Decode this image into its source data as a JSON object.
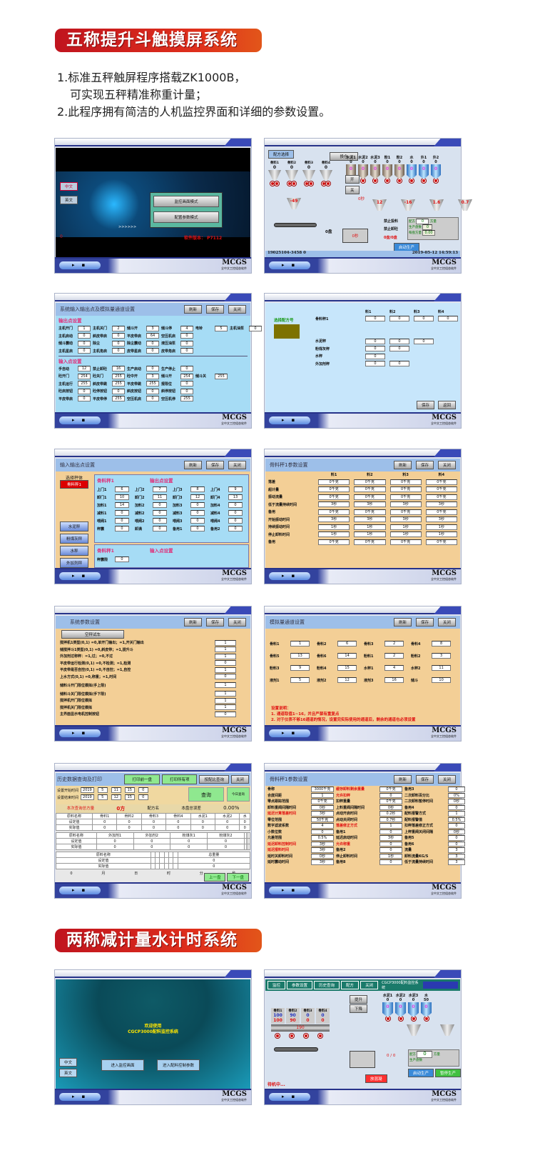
{
  "section1": {
    "title": "五称提升斗触摸屏系统"
  },
  "intro": [
    "1.标准五秤触屏程序搭载ZK1000B，",
    "可实现五秤精准称重计量；",
    "2.此程序拥有简洁的人机监控界面和详细的参数设置。"
  ],
  "section2": {
    "title": "两称减计量水计时系统"
  },
  "footer": {
    "logo": "MCGS",
    "sub": "全中文工控组态软件"
  },
  "colors": {
    "accent_red": "#d4201c",
    "panel_blue": "#9dbfe9",
    "cyan_bg": "#a6dcf5",
    "tan_bg": "#f3cf96"
  },
  "p1": {
    "lang": [
      "中文",
      "英文"
    ],
    "modes": [
      "监控画面模式",
      "配置参数模式"
    ],
    "arrows": ">>>>>>",
    "zero": "0",
    "version": "软件版本：  P7112"
  },
  "p2": {
    "recipe_btn": "配方选择",
    "switch_btn": "换仓",
    "open": "开",
    "close": "关",
    "aggregates": [
      {
        "n": "骨料1",
        "v": "0"
      },
      {
        "n": "骨料2",
        "v": "0"
      },
      {
        "n": "骨料3",
        "v": "0"
      },
      {
        "n": "骨料4",
        "v": "0"
      }
    ],
    "silos": [
      {
        "n": "水泥1",
        "v": "0"
      },
      {
        "n": "水泥2",
        "v": "0"
      },
      {
        "n": "水泥3",
        "v": "0"
      },
      {
        "n": "粉1",
        "v": "0"
      },
      {
        "n": "粉2",
        "v": "0"
      },
      {
        "n": "水",
        "v": "0"
      },
      {
        "n": "外1",
        "v": "0"
      },
      {
        "n": "外2",
        "v": "0"
      }
    ],
    "weigh": [
      "-49",
      "12",
      "-16",
      "1.6",
      "0.7"
    ],
    "timer1": "0秒",
    "batch": "0盘",
    "timer2": "0秒",
    "mixer": "0秒",
    "no_feed": "禁止投料",
    "no_unload": "禁止卸砼",
    "count": "0盘/0盘",
    "recipe_label": "配方",
    "recipe_unit": "方量",
    "recipe_val": "0",
    "produced": "生产盘数",
    "produced_val": "0",
    "remain": "每盘方量",
    "remain_val": "0.00",
    "start": "启动生产",
    "status": "19025104-3458  0",
    "datetime": "2019-05-12  14:59:13"
  },
  "p3": {
    "title": "系统输入输出点及模拟量通道设置",
    "buttons": [
      "刷新",
      "保存",
      "关闭"
    ],
    "out_title": "输出点设置",
    "out": [
      [
        [
          "主机开门",
          "1"
        ],
        [
          "主机关门",
          "2"
        ],
        [
          "储斗开",
          "3"
        ],
        [
          "储斗停",
          "4"
        ],
        [
          "电铃",
          "5"
        ],
        [
          "主机油泵",
          "0"
        ]
      ],
      [
        [
          "主机启动",
          "0"
        ],
        [
          "斜皮带启",
          "0"
        ],
        [
          "平皮带启",
          "64"
        ],
        [
          "空压机启",
          "0"
        ]
      ],
      [
        [
          "储斗震动",
          "0"
        ],
        [
          "除尘",
          "0"
        ],
        [
          "除尘震动",
          "0"
        ],
        [
          "液压油泵",
          "0"
        ]
      ],
      [
        [
          "主机星启",
          "0"
        ],
        [
          "主机角启",
          "0"
        ],
        [
          "皮带星启",
          "0"
        ],
        [
          "皮带角启",
          "0"
        ]
      ]
    ],
    "in_title": "输入点设置",
    "in": [
      [
        [
          "手自动",
          "12"
        ],
        [
          "禁止卸砼",
          "16"
        ],
        [
          "生产启动",
          "0"
        ],
        [
          "生产停止",
          "0"
        ]
      ],
      [
        [
          "砼开门",
          "254"
        ],
        [
          "砼关门",
          "255"
        ],
        [
          "砼中开",
          "3"
        ],
        [
          "储斗开",
          "254"
        ],
        [
          "储斗关",
          "255"
        ]
      ],
      [
        [
          "主机运行",
          "255"
        ],
        [
          "斜皮带跳",
          "255"
        ],
        [
          "平皮带跳",
          "255"
        ],
        [
          "报限位",
          "0"
        ]
      ],
      [
        [
          "砼启按钮",
          "0"
        ],
        [
          "砼停按钮",
          "0"
        ],
        [
          "斜皮按钮",
          "0"
        ],
        [
          "斜停按钮",
          "0"
        ]
      ],
      [
        [
          "平皮带启",
          "0"
        ],
        [
          "平皮带停",
          "255"
        ],
        [
          "空压机启",
          "0"
        ],
        [
          "空压机停",
          "255"
        ]
      ]
    ]
  },
  "p4": {
    "select": "选择配方号",
    "cols": [
      "料1",
      "料2",
      "料3",
      "料4"
    ],
    "rows": [
      [
        "骨料秤1",
        "0",
        "0",
        "0",
        "0"
      ],
      [
        ""
      ],
      [
        ""
      ],
      [
        "水泥秤",
        "0",
        "0",
        "0"
      ],
      [
        "粉煤灰秤",
        "0",
        "0"
      ],
      [
        "水秤",
        "0"
      ],
      [
        "外加剂秤",
        "0",
        "0"
      ]
    ],
    "buttons": [
      "保存",
      "返回"
    ]
  },
  "p5": {
    "title": "输入输出点设置",
    "buttons": [
      "刷新",
      "保存",
      "关闭"
    ],
    "select": "选择秤体",
    "active": "骨料秤1",
    "scales": [
      "水泥秤",
      "粉煤灰秤",
      "水秤",
      "外加剂秤"
    ],
    "scale_name": "骨料秤1",
    "out_title": "输出点设置",
    "out": [
      [
        [
          "上门1",
          "6"
        ],
        [
          "上门2",
          "7"
        ],
        [
          "上门3",
          "8"
        ],
        [
          "上门4",
          "9"
        ]
      ],
      [
        [
          "卸门1",
          "10"
        ],
        [
          "卸门2",
          "11"
        ],
        [
          "卸门3",
          "12"
        ],
        [
          "卸门4",
          "13"
        ]
      ],
      [
        [
          "加料1",
          "14"
        ],
        [
          "加料2",
          "0"
        ],
        [
          "加料3",
          "0"
        ],
        [
          "加料4",
          "0"
        ]
      ],
      [
        [
          "减料1",
          "0"
        ],
        [
          "减料2",
          "0"
        ],
        [
          "减料3",
          "0"
        ],
        [
          "减料4",
          "0"
        ]
      ],
      [
        [
          "喂阀1",
          "0"
        ],
        [
          "喂阀2",
          "0"
        ],
        [
          "喂阀3",
          "0"
        ],
        [
          "喂阀4",
          "0"
        ]
      ],
      [
        [
          "秤震",
          "0"
        ],
        [
          "卸满",
          "0"
        ],
        [
          "备用1",
          "0"
        ],
        [
          "备用2",
          "0"
        ]
      ]
    ],
    "in_title": "输入点设置",
    "in": [
      [
        [
          "秤震限",
          "0"
        ]
      ]
    ]
  },
  "p6": {
    "title": "骨料秤1参数设置",
    "buttons": [
      "刷新",
      "保存",
      "关闭"
    ],
    "cols": [
      "料1",
      "料2",
      "料3",
      "料4"
    ],
    "rows": [
      [
        "落差",
        "0千克",
        "0千克",
        "0千克",
        "0千克"
      ],
      [
        "超计量",
        "0千克",
        "0千克",
        "0千克",
        "0千克"
      ],
      [
        "振动流量",
        "0千克",
        "0千克",
        "0千克",
        "0千克"
      ],
      [
        "低于流量持续时间",
        "3秒",
        "3秒",
        "3秒",
        "3秒"
      ],
      [
        "备用",
        "0千克",
        "0千克",
        "0千克",
        "0千克"
      ],
      [
        "开始振动时间",
        "3秒",
        "3秒",
        "3秒",
        "3秒"
      ],
      [
        "持续振动时间",
        "1秒",
        "1秒",
        "1秒",
        "1秒"
      ],
      [
        "停止卸料时间",
        "1秒",
        "1秒",
        "1秒",
        "1秒"
      ],
      [
        "备用",
        "0千克",
        "0千克",
        "0千克",
        "0千克"
      ]
    ]
  },
  "p7": {
    "title": "系统参数设置",
    "buttons": [
      "刷新",
      "保存",
      "关闭"
    ],
    "test": "空秤试车",
    "rows": [
      [
        "搅拌机1类型(0,1)  =0,单开门输出；=1,开关门输出",
        "1"
      ],
      [
        "储搅拌斗1类型(0,1)  =0,斜皮带；=1,提升斗",
        "1"
      ],
      [
        "外加剂过称秤：=1,过；=0,不过",
        "1"
      ],
      [
        "平皮带运行检测(0,1)  =0,不检测；=1,检测",
        "0"
      ],
      [
        "平皮带是否自控(0,1)  =0,不自控；=1,自控",
        "1"
      ],
      [
        "上水方式(0,1)  =0,称重；=1,时间",
        "0"
      ],
      [
        "储料斗开门限位模拟(手上限)",
        "1"
      ],
      [
        "储料斗关门限位模拟(手下限)",
        "1"
      ],
      [
        "搅拌机开门限位模拟",
        "1"
      ],
      [
        "搅拌机关门限位模拟",
        "1"
      ],
      [
        "主界面显示电机控制按钮",
        "0"
      ]
    ]
  },
  "p8": {
    "title": "模拟量通道设置",
    "buttons": [
      "刷新",
      "保存",
      "关闭"
    ],
    "rows": [
      [
        [
          "骨料1",
          "1"
        ],
        [
          "骨料2",
          "6"
        ],
        [
          "骨料3",
          "2"
        ],
        [
          "骨料4",
          "8"
        ]
      ],
      [
        [
          "骨料5",
          "13"
        ],
        [
          "骨料6",
          "14"
        ],
        [
          "粉料1",
          "2"
        ],
        [
          "粉料2",
          "3"
        ]
      ],
      [
        [
          "粉料3",
          "9"
        ],
        [
          "粉料4",
          "15"
        ],
        [
          "水秤1",
          "4"
        ],
        [
          "水秤2",
          "11"
        ]
      ],
      [
        [
          "液剂1",
          "5"
        ],
        [
          "液剂2",
          "12"
        ],
        [
          "液剂3",
          "16"
        ],
        [
          "储斗",
          "10"
        ]
      ]
    ],
    "notes": [
      "设置说明：",
      "1. 通道取值1~16，并且严禁有重复点",
      "2. 对于仪表不够16通道的情况，设置完实际使用的通道后，剩余的通道也必须设置"
    ]
  },
  "p9": {
    "title": "历史数据查询及打印",
    "green": [
      "打印前一盘",
      "打印所有项"
    ],
    "buttons": [
      "按配比查询",
      "关闭"
    ],
    "start_label": "设置开始时间",
    "start": [
      "2019",
      "5",
      "11",
      "15",
      "0"
    ],
    "end_label": "设置结束时间",
    "end": [
      "2019",
      "5",
      "12",
      "15",
      "0"
    ],
    "query": "查询",
    "today": "今日查询",
    "summary": [
      "本次查询总方量",
      "0方",
      "配方名",
      "本盘总误差",
      "0.00%"
    ],
    "t1": [
      [
        "原料名称",
        "骨料1",
        "骨料2",
        "骨料3",
        "骨料4",
        "水泥1",
        "水泥2",
        "水"
      ],
      [
        "设定值",
        "0",
        "0",
        "0",
        "0",
        "0",
        "0",
        "0"
      ],
      [
        "实际值",
        "0",
        "0",
        "0",
        "0",
        "0",
        "0",
        "0"
      ]
    ],
    "t2": [
      [
        "原料名称",
        "外加剂1",
        "外加剂2",
        "粉煤灰1",
        "粉煤灰2",
        "",
        "",
        ""
      ],
      [
        "设定值",
        "0",
        "0",
        "0",
        "0",
        "",
        "",
        ""
      ],
      [
        "实际值",
        "0",
        "0",
        "0",
        "0",
        "",
        "",
        ""
      ]
    ],
    "t3": [
      [
        "原料名称",
        "",
        "",
        "",
        "",
        "",
        "",
        "总重量"
      ],
      [
        "设定值",
        "",
        "",
        "",
        "",
        "",
        "",
        "0"
      ],
      [
        "实际值",
        "",
        "",
        "",
        "",
        "",
        "",
        "0"
      ]
    ],
    "nav": [
      "0",
      "月",
      "日",
      "时",
      "分",
      "秒"
    ],
    "prev": "上一盘",
    "next": "下一盘"
  },
  "p10": {
    "title": "骨料秤1参数设置",
    "buttons": [
      "刷新",
      "保存",
      "关闭"
    ],
    "rows": [
      [
        [
          "骨称",
          "3000千克"
        ],
        [
          "缓存卸料剩余重量",
          "0千克"
        ],
        [
          "备用3",
          "0"
        ]
      ],
      [
        [
          "合度间距",
          "1"
        ],
        [
          "允许扣秤",
          "0"
        ],
        [
          "二次卸料百分比",
          "0%"
        ]
      ],
      [
        [
          "零点跟踪范围",
          "0千克"
        ],
        [
          "扣秤重量",
          "0千克"
        ],
        [
          "二次卸料暂停时间",
          "0秒"
        ]
      ],
      [
        [
          "卸料重阀间隔时间",
          "0秒"
        ],
        [
          "上料重阀间隔时间",
          "0秒"
        ],
        [
          "备用4",
          "0"
        ]
      ],
      [
        [
          "延迟计算落差时间",
          "3秒"
        ],
        [
          "点动开启时间",
          "0.2秒"
        ],
        [
          "配料报警方式",
          "1"
        ]
      ],
      [
        [
          "零位范围",
          "50千克"
        ],
        [
          "点动关闭时间",
          "0.7秒"
        ],
        [
          "配料报警值",
          "0.5%"
        ]
      ],
      [
        [
          "数字滤波系数",
          "4"
        ],
        [
          "落差修正方式",
          "1"
        ],
        [
          "扣秤落差修正方式",
          "0"
        ]
      ],
      [
        [
          "小数位数",
          "0"
        ],
        [
          "备用1",
          "0"
        ],
        [
          "上秤重阀关闭间隔",
          "0秒"
        ]
      ],
      [
        [
          "允差范围",
          "0.5%"
        ],
        [
          "延迟启动时间",
          "3秒"
        ],
        [
          "备用5",
          "0"
        ]
      ],
      [
        [
          "延迟卸料控制时间",
          "3秒"
        ],
        [
          "允许称重",
          "0"
        ],
        [
          "备用6",
          "0"
        ]
      ],
      [
        [
          "延迟报料时间",
          "3秒"
        ],
        [
          "备用2",
          "0"
        ],
        [
          "流量",
          "3"
        ]
      ],
      [
        [
          "延时关卸料时间",
          "0秒"
        ],
        [
          "停止卸料时间",
          "1秒"
        ],
        [
          "卸料流量KG/S",
          "3"
        ]
      ],
      [
        [
          "延时震动时间",
          "3秒"
        ],
        [
          "备用8",
          "0"
        ],
        [
          "低于流量持续时间",
          "3"
        ]
      ]
    ]
  },
  "p11": {
    "welcome": "欢迎使用",
    "system": "CGCP3000配料监控系统",
    "lang": [
      "中文",
      "英文"
    ],
    "enter": [
      "进入监控画面",
      "进入配料控制参数"
    ]
  },
  "p12": {
    "tabs": [
      "监控",
      "参数设置",
      "历史查询",
      "配方",
      "关闭"
    ],
    "system": "CGCP3000配料监控系统",
    "aggs": [
      {
        "n": "骨料1",
        "a": "100",
        "b": "100"
      },
      {
        "n": "骨料2",
        "a": "90",
        "b": "90"
      },
      {
        "n": "骨料3",
        "a": "0",
        "b": "0"
      },
      {
        "n": "骨料4",
        "a": "0",
        "b": "0"
      }
    ],
    "belt": "190",
    "up": "提升",
    "down": "下降",
    "silos": [
      {
        "n": "水泥1",
        "v": "0"
      },
      {
        "n": "水泥2",
        "v": "0"
      },
      {
        "n": "水泥3",
        "v": "0"
      },
      {
        "n": "水",
        "v": "50"
      }
    ],
    "count": "0 / 0",
    "recipe": "配方",
    "recipe_val": "0",
    "unit": "方量",
    "produced": "生产盘数",
    "status": "待机中...",
    "start": "启动生产",
    "stop": "暂停生产",
    "dump": "放混凝"
  }
}
